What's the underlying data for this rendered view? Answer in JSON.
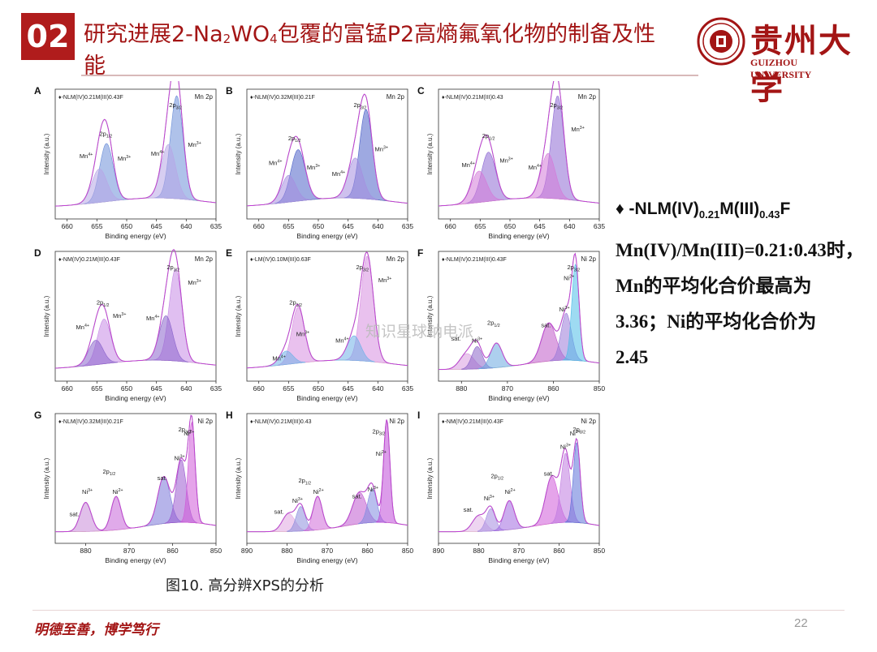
{
  "header": {
    "badge": "02",
    "title_part1": "研究进展2-Na",
    "title_sub1": "2",
    "title_part2": "WO",
    "title_sub2": "4",
    "title_part3": "包覆的富锰P2高熵氟氧化物的制备及性能"
  },
  "logo": {
    "cn_name": "贵州大学",
    "en_name": "GUIZHOU UNIVERSITY"
  },
  "right_text": {
    "bullet": "♦",
    "formula_prefix": " -NLM(IV)",
    "formula_sub1": "0.21",
    "formula_mid": "M(III)",
    "formula_sub2": "0.43",
    "formula_suffix": "F",
    "line2": "Mn(IV)/Mn(III)=0.21:0.43时，",
    "line3": "Mn的平均化合价最高为",
    "line4": "3.36；Ni的平均化合价为",
    "line5": "2.45"
  },
  "caption": "图10. 高分辨XPS的分析",
  "motto": "明德至善，博学笃行",
  "page_number": "22",
  "watermark": "知识星球钠电派",
  "common": {
    "ylabel": "Intensity (a.u.)",
    "xlabel": "Binding energy (eV)"
  },
  "chart_data": [
    {
      "id": "A",
      "type": "line",
      "legend": "-NLM(IV)0.21M(III)0.43F",
      "element": "Mn 2p",
      "xlim": [
        662,
        635
      ],
      "xticks": [
        660,
        655,
        650,
        645,
        640,
        635
      ],
      "peaks": [
        {
          "x": 653.4,
          "h": 0.52,
          "w": 1.6,
          "color": "#6d8fd8"
        },
        {
          "x": 654.6,
          "h": 0.3,
          "w": 1.8,
          "color": "#b7a6e6"
        },
        {
          "x": 641.6,
          "h": 0.92,
          "w": 1.5,
          "color": "#6d8fd8"
        },
        {
          "x": 643.0,
          "h": 0.48,
          "w": 1.7,
          "color": "#b7a6e6"
        }
      ],
      "labels": [
        {
          "text": "2p1/2",
          "x": 653.5,
          "y": 0.7
        },
        {
          "text": "Mn4+",
          "x": 656.8,
          "y": 0.5
        },
        {
          "text": "Mn3+",
          "x": 650.4,
          "y": 0.48
        },
        {
          "text": "2p3/2",
          "x": 641.8,
          "y": 1.0
        },
        {
          "text": "Mn4+",
          "x": 644.8,
          "y": 0.52
        },
        {
          "text": "Mn3+",
          "x": 638.6,
          "y": 0.6
        }
      ]
    },
    {
      "id": "B",
      "type": "line",
      "legend": "-NLM(IV)0.32M(III)0.21F",
      "element": "Mn 2p",
      "xlim": [
        662,
        635
      ],
      "xticks": [
        660,
        655,
        650,
        645,
        640,
        635
      ],
      "peaks": [
        {
          "x": 653.4,
          "h": 0.46,
          "w": 1.7,
          "color": "#4f63c9"
        },
        {
          "x": 655.0,
          "h": 0.24,
          "w": 1.7,
          "color": "#a58ee0"
        },
        {
          "x": 642.0,
          "h": 0.8,
          "w": 1.5,
          "color": "#4f63c9"
        },
        {
          "x": 643.8,
          "h": 0.36,
          "w": 1.7,
          "color": "#a58ee0"
        }
      ],
      "labels": [
        {
          "text": "2p1/2",
          "x": 654.0,
          "y": 0.66
        },
        {
          "text": "Mn4+",
          "x": 657.2,
          "y": 0.44
        },
        {
          "text": "Mn3+",
          "x": 650.8,
          "y": 0.4
        },
        {
          "text": "2p3/2",
          "x": 643.0,
          "y": 1.0
        },
        {
          "text": "Mn4+",
          "x": 646.6,
          "y": 0.34
        },
        {
          "text": "Mn3+",
          "x": 639.4,
          "y": 0.56
        }
      ]
    },
    {
      "id": "C",
      "type": "line",
      "legend": "-NLM(IV)0.21M(III)0.43",
      "element": "Mn 2p",
      "xlim": [
        662,
        635
      ],
      "xticks": [
        660,
        655,
        650,
        645,
        640,
        635
      ],
      "peaks": [
        {
          "x": 653.6,
          "h": 0.44,
          "w": 1.7,
          "color": "#8e6ad4"
        },
        {
          "x": 655.2,
          "h": 0.28,
          "w": 1.8,
          "color": "#d47ad8"
        },
        {
          "x": 642.0,
          "h": 0.92,
          "w": 1.5,
          "color": "#8e6ad4"
        },
        {
          "x": 643.6,
          "h": 0.4,
          "w": 1.7,
          "color": "#d47ad8"
        }
      ],
      "labels": [
        {
          "text": "2p1/2",
          "x": 653.6,
          "y": 0.68
        },
        {
          "text": "Mn4+",
          "x": 657.0,
          "y": 0.42
        },
        {
          "text": "Mn3+",
          "x": 650.6,
          "y": 0.46
        },
        {
          "text": "2p3/2",
          "x": 642.2,
          "y": 1.02
        },
        {
          "text": "Mn4+",
          "x": 645.8,
          "y": 0.4
        },
        {
          "text": "Mn3+",
          "x": 638.6,
          "y": 0.74
        }
      ]
    },
    {
      "id": "D",
      "type": "line",
      "legend": "-NM(IV)0.21M(III)0.43F",
      "element": "Mn 2p",
      "xlim": [
        662,
        635
      ],
      "xticks": [
        660,
        655,
        650,
        645,
        640,
        635
      ],
      "peaks": [
        {
          "x": 653.8,
          "h": 0.4,
          "w": 1.6,
          "color": "#c68be6"
        },
        {
          "x": 655.2,
          "h": 0.22,
          "w": 1.7,
          "color": "#8b64cc"
        },
        {
          "x": 641.8,
          "h": 0.82,
          "w": 1.5,
          "color": "#c68be6"
        },
        {
          "x": 643.4,
          "h": 0.4,
          "w": 1.6,
          "color": "#8b64cc"
        }
      ],
      "labels": [
        {
          "text": "2p1/2",
          "x": 654.0,
          "y": 0.64
        },
        {
          "text": "Mn4+",
          "x": 657.4,
          "y": 0.42
        },
        {
          "text": "Mn3+",
          "x": 651.2,
          "y": 0.52
        },
        {
          "text": "2p3/2",
          "x": 642.2,
          "y": 1.0
        },
        {
          "text": "Mn4+",
          "x": 645.6,
          "y": 0.5
        },
        {
          "text": "Mn3+",
          "x": 638.6,
          "y": 0.82
        }
      ]
    },
    {
      "id": "E",
      "type": "line",
      "legend": "-LM(IV)0.10M(III)0.63F",
      "element": "Mn 2p",
      "xlim": [
        662,
        635
      ],
      "xticks": [
        660,
        655,
        650,
        645,
        640,
        635
      ],
      "peaks": [
        {
          "x": 653.4,
          "h": 0.5,
          "w": 1.5,
          "color": "#d78ee0"
        },
        {
          "x": 655.4,
          "h": 0.12,
          "w": 1.6,
          "color": "#6fb0e8"
        },
        {
          "x": 641.8,
          "h": 0.94,
          "w": 1.5,
          "color": "#d78ee0"
        },
        {
          "x": 644.0,
          "h": 0.22,
          "w": 1.6,
          "color": "#6fb0e8"
        }
      ],
      "labels": [
        {
          "text": "2p1/2",
          "x": 653.8,
          "y": 0.64
        },
        {
          "text": "Mn3+",
          "x": 652.6,
          "y": 0.36
        },
        {
          "text": "Mn4+",
          "x": 656.6,
          "y": 0.14
        },
        {
          "text": "2p3/2",
          "x": 642.6,
          "y": 1.04
        },
        {
          "text": "Mn4+",
          "x": 646.0,
          "y": 0.3
        },
        {
          "text": "Mn3+",
          "x": 638.8,
          "y": 0.84
        }
      ]
    },
    {
      "id": "F",
      "type": "line",
      "legend": "-NLM(IV)0.21M(III)0.43F",
      "element": "Ni 2p",
      "xlim": [
        885,
        850
      ],
      "xticks": [
        880,
        870,
        860,
        850
      ],
      "peaks": [
        {
          "x": 878.8,
          "h": 0.14,
          "w": 2.2,
          "color": "#d89be0"
        },
        {
          "x": 876.6,
          "h": 0.2,
          "w": 1.6,
          "color": "#8a64c8"
        },
        {
          "x": 872.4,
          "h": 0.22,
          "w": 1.8,
          "color": "#6aa8e0"
        },
        {
          "x": 861.0,
          "h": 0.34,
          "w": 2.2,
          "color": "#c05ac8"
        },
        {
          "x": 857.2,
          "h": 0.42,
          "w": 1.6,
          "color": "#9a7ad8"
        },
        {
          "x": 855.2,
          "h": 0.86,
          "w": 1.1,
          "color": "#4fbde8"
        }
      ],
      "labels": [
        {
          "text": "sat.",
          "x": 881.2,
          "y": 0.32
        },
        {
          "text": "Ni3+",
          "x": 876.6,
          "y": 0.3
        },
        {
          "text": "2p1/2",
          "x": 873.0,
          "y": 0.46
        },
        {
          "text": "sat.",
          "x": 861.6,
          "y": 0.44
        },
        {
          "text": "Ni3+",
          "x": 857.6,
          "y": 0.58
        },
        {
          "text": "Ni2+",
          "x": 856.6,
          "y": 0.86
        },
        {
          "text": "2p3/2",
          "x": 855.6,
          "y": 1.0
        },
        {
          "text": "Ni 2p",
          "x": 852.8,
          "y": 1.08
        }
      ]
    },
    {
      "id": "G",
      "type": "line",
      "legend": "-NLM(IV)0.32M(III)0.21F",
      "element": "Ni 2p",
      "xlim": [
        887,
        850
      ],
      "xticks": [
        880,
        870,
        860,
        850
      ],
      "peaks": [
        {
          "x": 880.0,
          "h": 0.26,
          "w": 1.8,
          "color": "#c98bd8"
        },
        {
          "x": 873.0,
          "h": 0.3,
          "w": 1.6,
          "color": "#c765d8"
        },
        {
          "x": 862.0,
          "h": 0.42,
          "w": 2.0,
          "color": "#7a77d8"
        },
        {
          "x": 858.0,
          "h": 0.56,
          "w": 1.6,
          "color": "#9a5ad0"
        },
        {
          "x": 855.6,
          "h": 0.9,
          "w": 1.1,
          "color": "#d05ad8"
        }
      ],
      "labels": [
        {
          "text": "sat.",
          "x": 882.6,
          "y": 0.2
        },
        {
          "text": "Ni3+",
          "x": 879.6,
          "y": 0.4
        },
        {
          "text": "2p1/2",
          "x": 874.6,
          "y": 0.58
        },
        {
          "text": "Ni2+",
          "x": 872.6,
          "y": 0.4
        },
        {
          "text": "sat.",
          "x": 862.4,
          "y": 0.52
        },
        {
          "text": "Ni3+",
          "x": 858.4,
          "y": 0.7
        },
        {
          "text": "Ni2+",
          "x": 856.2,
          "y": 0.92
        },
        {
          "text": "2p3/2",
          "x": 857.2,
          "y": 1.0
        }
      ]
    },
    {
      "id": "H",
      "type": "line",
      "legend": "-NLM(IV)0.21M(III)0.43",
      "element": "Ni 2p",
      "xlim": [
        890,
        850
      ],
      "xticks": [
        890,
        880,
        870,
        860,
        850
      ],
      "peaks": [
        {
          "x": 879.6,
          "h": 0.16,
          "w": 2.2,
          "color": "#e0a6e0"
        },
        {
          "x": 876.6,
          "h": 0.22,
          "w": 1.6,
          "color": "#8c8edc"
        },
        {
          "x": 872.4,
          "h": 0.3,
          "w": 1.6,
          "color": "#d06ad8"
        },
        {
          "x": 862.0,
          "h": 0.28,
          "w": 2.4,
          "color": "#c05ad0"
        },
        {
          "x": 858.8,
          "h": 0.3,
          "w": 1.6,
          "color": "#7f8ae0"
        },
        {
          "x": 855.2,
          "h": 0.92,
          "w": 1.1,
          "color": "#c04ad8"
        }
      ],
      "labels": [
        {
          "text": "sat.",
          "x": 882.0,
          "y": 0.22
        },
        {
          "text": "Ni3+",
          "x": 877.4,
          "y": 0.32
        },
        {
          "text": "2p1/2",
          "x": 875.6,
          "y": 0.5
        },
        {
          "text": "Ni2+",
          "x": 872.2,
          "y": 0.4
        },
        {
          "text": "sat.",
          "x": 862.6,
          "y": 0.36
        },
        {
          "text": "Ni3+",
          "x": 858.6,
          "y": 0.42
        },
        {
          "text": "Ni2+",
          "x": 856.6,
          "y": 0.74
        },
        {
          "text": "2p3/2",
          "x": 857.2,
          "y": 0.94
        },
        {
          "text": "Ni 2p",
          "x": 852.6,
          "y": 1.02
        }
      ]
    },
    {
      "id": "I",
      "type": "line",
      "legend": "-NM(IV)0.21M(III)0.43F",
      "element": "Ni 2p",
      "xlim": [
        890,
        850
      ],
      "xticks": [
        890,
        880,
        870,
        860,
        850
      ],
      "peaks": [
        {
          "x": 880.0,
          "h": 0.14,
          "w": 2.2,
          "color": "#e0b2e6"
        },
        {
          "x": 877.0,
          "h": 0.2,
          "w": 1.6,
          "color": "#a48be0"
        },
        {
          "x": 872.4,
          "h": 0.26,
          "w": 1.8,
          "color": "#a06ae0"
        },
        {
          "x": 861.8,
          "h": 0.42,
          "w": 2.2,
          "color": "#d05ad8"
        },
        {
          "x": 858.4,
          "h": 0.62,
          "w": 1.6,
          "color": "#c07ae0"
        },
        {
          "x": 855.6,
          "h": 0.72,
          "w": 1.2,
          "color": "#5c72d8"
        }
      ],
      "labels": [
        {
          "text": "sat.",
          "x": 882.6,
          "y": 0.24
        },
        {
          "text": "Ni3+",
          "x": 877.4,
          "y": 0.34
        },
        {
          "text": "2p1/2",
          "x": 875.4,
          "y": 0.54
        },
        {
          "text": "Ni2+",
          "x": 872.2,
          "y": 0.4
        },
        {
          "text": "sat.",
          "x": 862.6,
          "y": 0.56
        },
        {
          "text": "Ni3+",
          "x": 858.4,
          "y": 0.8
        },
        {
          "text": "Ni2+",
          "x": 856.0,
          "y": 0.92
        },
        {
          "text": "2p3/2",
          "x": 855.0,
          "y": 1.0
        }
      ]
    }
  ]
}
